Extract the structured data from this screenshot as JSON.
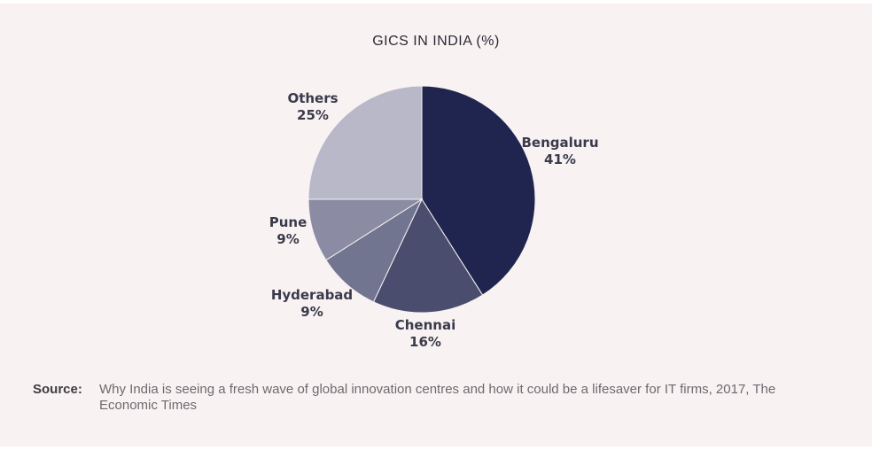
{
  "chart_data": {
    "type": "pie",
    "title": "GICS IN INDIA (%)",
    "unit": "%",
    "slices": [
      {
        "label": "Bengaluru",
        "value": 41,
        "value_label": "41%",
        "color": "#20254f"
      },
      {
        "label": "Chennai",
        "value": 16,
        "value_label": "16%",
        "color": "#4a4d6e"
      },
      {
        "label": "Hyderabad",
        "value": 9,
        "value_label": "9%",
        "color": "#727590"
      },
      {
        "label": "Pune",
        "value": 9,
        "value_label": "9%",
        "color": "#8b8ca3"
      },
      {
        "label": "Others",
        "value": 25,
        "value_label": "25%",
        "color": "#b9b8c8"
      }
    ]
  },
  "source": {
    "label": "Source:",
    "text": "Why India is seeing a fresh wave of global innovation centres and how it could be a lifesaver for IT firms, 2017, The Economic Times"
  }
}
